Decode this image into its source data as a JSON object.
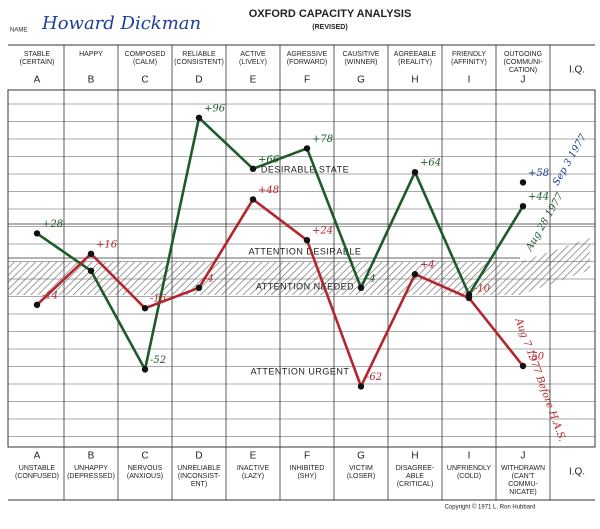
{
  "chart_data": {
    "type": "line",
    "title": "OXFORD CAPACITY ANALYSIS",
    "subtitle": "(REVISED)",
    "name_label": "NAME",
    "name": "Howard Dickman",
    "iq_label": "I.Q.",
    "copyright": "Copyright © 1971 L. Ron Hubbard",
    "categories": [
      "A",
      "B",
      "C",
      "D",
      "E",
      "F",
      "G",
      "H",
      "I",
      "J"
    ],
    "top_labels": [
      "STABLE (CERTAIN)",
      "HAPPY",
      "COMPOSED (CALM)",
      "RELIABLE (CONSISTENT)",
      "ACTIVE (LIVELY)",
      "AGRESSIVE (FORWARD)",
      "CAUSITIVE (WINNER)",
      "AGREEABLE (REALITY)",
      "FRIENDLY (AFFINITY)",
      "OUTGOING (COMMUNI- CATION)"
    ],
    "bottom_labels": [
      "UNSTABLE (CONFUSED)",
      "UNHAPPY (DEPRESSED)",
      "NERVOUS (ANXIOUS)",
      "UNRELIABLE (INCONSIST- ENT)",
      "INACTIVE (LAZY)",
      "INHIBITED (SHY)",
      "VICTIM (LOSER)",
      "DISAGREE- ABLE (CRITICAL)",
      "UNFRIENDLY (COLD)",
      "WITHDRAWN (CAN'T COMMU- NICATE)"
    ],
    "zones": [
      "DESIRABLE STATE",
      "ATTENTION DESIRABLE",
      "ATTENTION NEEDED",
      "ATTENTION URGENT"
    ],
    "ylim": [
      -100,
      100
    ],
    "series": [
      {
        "name": "Aug 28 1977",
        "color": "#1f5a2a",
        "values": [
          28,
          6,
          -52,
          96,
          66,
          78,
          -4,
          64,
          -8,
          44
        ],
        "value_labels": [
          "+28",
          null,
          "-52",
          "+96",
          "+66",
          "+78",
          "-4",
          "+64",
          null,
          "+44"
        ]
      },
      {
        "name": "Aug 7 1977 Before H.A.S.",
        "color": "#b3262e",
        "values": [
          -14,
          16,
          -16,
          -4,
          48,
          24,
          -62,
          4,
          -10,
          -50
        ],
        "value_labels": [
          "-14",
          "+16",
          "-16",
          "-4",
          "+48",
          "+24",
          "-62",
          "+4",
          "-10",
          "-50"
        ]
      },
      {
        "name": "Sep 3 1977",
        "color": "#1d3f9a",
        "values": [
          null,
          null,
          null,
          null,
          null,
          null,
          null,
          null,
          null,
          58
        ],
        "value_labels": [
          null,
          null,
          null,
          null,
          null,
          null,
          null,
          null,
          null,
          "+58"
        ]
      }
    ]
  }
}
